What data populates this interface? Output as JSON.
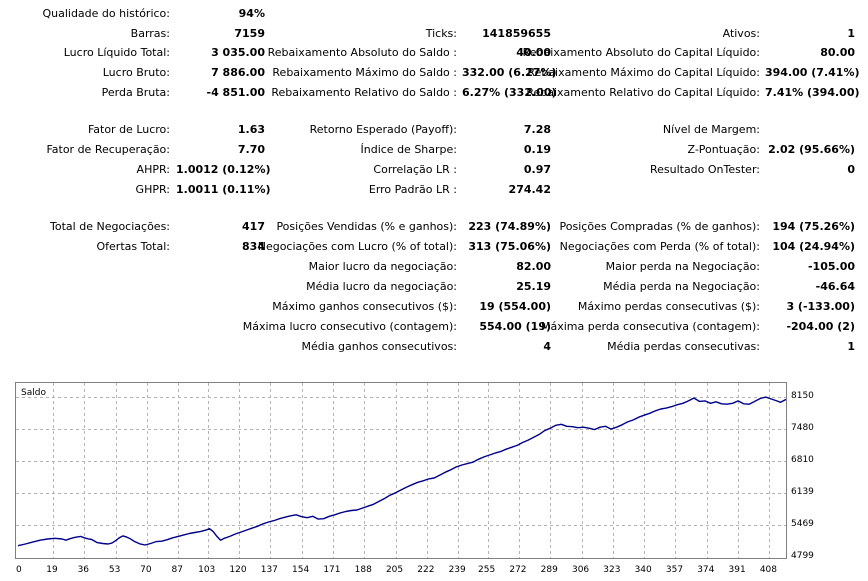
{
  "report": {
    "rows": [
      {
        "y": 7,
        "cells": [
          [
            "Qualidade do histórico:",
            "94%"
          ],
          null,
          null
        ]
      },
      {
        "y": 27,
        "cells": [
          [
            "Barras:",
            "7159"
          ],
          [
            "Ticks:",
            "141859655"
          ],
          [
            "Ativos:",
            "1"
          ]
        ]
      },
      {
        "y": 46,
        "cells": [
          [
            "Lucro Líquido Total:",
            "3 035.00"
          ],
          [
            "Rebaixamento Absoluto do Saldo :",
            "40.00"
          ],
          [
            "Rebaixamento Absoluto do Capital Líquido:",
            "80.00"
          ]
        ]
      },
      {
        "y": 66,
        "cells": [
          [
            "Lucro Bruto:",
            "7 886.00"
          ],
          [
            "Rebaixamento Máximo do Saldo :",
            "332.00 (6.27%)"
          ],
          [
            "Rebaixamento Máximo do Capital Líquido:",
            "394.00 (7.41%)"
          ]
        ]
      },
      {
        "y": 86,
        "cells": [
          [
            "Perda Bruta:",
            "-4 851.00"
          ],
          [
            "Rebaixamento Relativo do Saldo :",
            "6.27% (332.00)"
          ],
          [
            "Rebaixamento Relativo do Capital Líquido:",
            "7.41% (394.00)"
          ]
        ]
      },
      {
        "y": 123,
        "cells": [
          [
            "Fator de Lucro:",
            "1.63"
          ],
          [
            "Retorno Esperado (Payoff):",
            "7.28"
          ],
          [
            "Nível de Margem:",
            ""
          ]
        ]
      },
      {
        "y": 143,
        "cells": [
          [
            "Fator de Recuperação:",
            "7.70"
          ],
          [
            "Índice de Sharpe:",
            "0.19"
          ],
          [
            "Z-Pontuação:",
            "2.02 (95.66%)"
          ]
        ]
      },
      {
        "y": 163,
        "cells": [
          [
            "AHPR:",
            "1.0012 (0.12%)"
          ],
          [
            "Correlação LR :",
            "0.97"
          ],
          [
            "Resultado OnTester:",
            "0"
          ]
        ]
      },
      {
        "y": 183,
        "cells": [
          [
            "GHPR:",
            "1.0011 (0.11%)"
          ],
          [
            "Erro Padrão LR :",
            "274.42"
          ],
          null
        ]
      },
      {
        "y": 220,
        "cells": [
          [
            "Total de Negociações:",
            "417"
          ],
          [
            "Posições Vendidas (% e ganhos):",
            "223 (74.89%)"
          ],
          [
            "Posições Compradas (% de ganhos):",
            "194 (75.26%)"
          ]
        ]
      },
      {
        "y": 240,
        "cells": [
          [
            "Ofertas Total:",
            "834"
          ],
          [
            "Negociações com Lucro (% of total):",
            "313 (75.06%)"
          ],
          [
            "Negociações com Perda (% of total):",
            "104 (24.94%)"
          ]
        ]
      },
      {
        "y": 260,
        "cells": [
          null,
          [
            "Maior lucro da negociação:",
            "82.00"
          ],
          [
            "Maior perda na Negociação:",
            "-105.00"
          ]
        ]
      },
      {
        "y": 280,
        "cells": [
          null,
          [
            "Média lucro da negociação:",
            "25.19"
          ],
          [
            "Média perda na Negociação:",
            "-46.64"
          ]
        ]
      },
      {
        "y": 300,
        "cells": [
          null,
          [
            "Máximo ganhos consecutivos ($):",
            "19 (554.00)"
          ],
          [
            "Máximo perdas consecutivas ($):",
            "3 (-133.00)"
          ]
        ]
      },
      {
        "y": 320,
        "cells": [
          null,
          [
            "Máxima lucro consecutivo (contagem):",
            "554.00 (19)"
          ],
          [
            "Máxima perda consecutiva (contagem):",
            "-204.00 (2)"
          ]
        ]
      },
      {
        "y": 340,
        "cells": [
          null,
          [
            "Média ganhos consecutivos:",
            "4"
          ],
          [
            "Média perdas consecutivas:",
            "1"
          ]
        ]
      }
    ]
  },
  "chart_data": {
    "type": "line",
    "title": "Saldo",
    "xlabel": "",
    "ylabel": "",
    "x_ticks": [
      0,
      19,
      36,
      53,
      70,
      87,
      103,
      120,
      137,
      154,
      171,
      188,
      205,
      222,
      239,
      255,
      272,
      289,
      306,
      323,
      340,
      357,
      374,
      391,
      408
    ],
    "y_ticks": [
      4799,
      5469,
      6139,
      6810,
      7480,
      8150
    ],
    "xlim": [
      0,
      417
    ],
    "ylim": [
      4799,
      8350
    ],
    "grid": true,
    "line_color": "#00008b",
    "series": [
      {
        "points": [
          [
            0,
            5035
          ],
          [
            4,
            5070
          ],
          [
            8,
            5110
          ],
          [
            12,
            5150
          ],
          [
            16,
            5175
          ],
          [
            20,
            5190
          ],
          [
            24,
            5175
          ],
          [
            26,
            5150
          ],
          [
            28,
            5180
          ],
          [
            31,
            5210
          ],
          [
            34,
            5230
          ],
          [
            36,
            5200
          ],
          [
            38,
            5180
          ],
          [
            40,
            5165
          ],
          [
            43,
            5100
          ],
          [
            46,
            5080
          ],
          [
            49,
            5070
          ],
          [
            51,
            5090
          ],
          [
            53,
            5140
          ],
          [
            55,
            5200
          ],
          [
            57,
            5240
          ],
          [
            59,
            5215
          ],
          [
            61,
            5180
          ],
          [
            63,
            5130
          ],
          [
            66,
            5075
          ],
          [
            69,
            5050
          ],
          [
            72,
            5080
          ],
          [
            75,
            5120
          ],
          [
            78,
            5130
          ],
          [
            81,
            5160
          ],
          [
            84,
            5200
          ],
          [
            87,
            5230
          ],
          [
            90,
            5260
          ],
          [
            93,
            5290
          ],
          [
            96,
            5310
          ],
          [
            99,
            5330
          ],
          [
            102,
            5360
          ],
          [
            104,
            5390
          ],
          [
            106,
            5330
          ],
          [
            108,
            5230
          ],
          [
            110,
            5150
          ],
          [
            112,
            5190
          ],
          [
            115,
            5230
          ],
          [
            118,
            5280
          ],
          [
            121,
            5320
          ],
          [
            124,
            5360
          ],
          [
            127,
            5400
          ],
          [
            130,
            5440
          ],
          [
            133,
            5490
          ],
          [
            136,
            5530
          ],
          [
            139,
            5560
          ],
          [
            142,
            5600
          ],
          [
            145,
            5630
          ],
          [
            148,
            5660
          ],
          [
            151,
            5680
          ],
          [
            154,
            5640
          ],
          [
            157,
            5620
          ],
          [
            160,
            5650
          ],
          [
            163,
            5590
          ],
          [
            166,
            5600
          ],
          [
            169,
            5650
          ],
          [
            172,
            5680
          ],
          [
            175,
            5720
          ],
          [
            178,
            5750
          ],
          [
            181,
            5770
          ],
          [
            184,
            5780
          ],
          [
            187,
            5820
          ],
          [
            190,
            5860
          ],
          [
            193,
            5900
          ],
          [
            196,
            5960
          ],
          [
            199,
            6020
          ],
          [
            202,
            6090
          ],
          [
            205,
            6140
          ],
          [
            208,
            6200
          ],
          [
            211,
            6260
          ],
          [
            214,
            6310
          ],
          [
            217,
            6360
          ],
          [
            220,
            6390
          ],
          [
            223,
            6430
          ],
          [
            226,
            6450
          ],
          [
            229,
            6510
          ],
          [
            232,
            6570
          ],
          [
            235,
            6620
          ],
          [
            238,
            6680
          ],
          [
            241,
            6720
          ],
          [
            244,
            6750
          ],
          [
            247,
            6780
          ],
          [
            250,
            6840
          ],
          [
            253,
            6890
          ],
          [
            256,
            6930
          ],
          [
            259,
            6970
          ],
          [
            262,
            7000
          ],
          [
            265,
            7050
          ],
          [
            268,
            7090
          ],
          [
            271,
            7130
          ],
          [
            274,
            7190
          ],
          [
            277,
            7240
          ],
          [
            280,
            7300
          ],
          [
            283,
            7360
          ],
          [
            286,
            7440
          ],
          [
            289,
            7490
          ],
          [
            292,
            7550
          ],
          [
            295,
            7570
          ],
          [
            298,
            7530
          ],
          [
            301,
            7520
          ],
          [
            304,
            7500
          ],
          [
            307,
            7510
          ],
          [
            310,
            7490
          ],
          [
            313,
            7460
          ],
          [
            316,
            7510
          ],
          [
            319,
            7530
          ],
          [
            322,
            7470
          ],
          [
            325,
            7510
          ],
          [
            328,
            7560
          ],
          [
            331,
            7620
          ],
          [
            334,
            7660
          ],
          [
            337,
            7720
          ],
          [
            340,
            7760
          ],
          [
            343,
            7800
          ],
          [
            346,
            7850
          ],
          [
            349,
            7890
          ],
          [
            352,
            7910
          ],
          [
            355,
            7940
          ],
          [
            358,
            7980
          ],
          [
            361,
            8010
          ],
          [
            364,
            8060
          ],
          [
            367,
            8120
          ],
          [
            370,
            8050
          ],
          [
            373,
            8060
          ],
          [
            376,
            8010
          ],
          [
            379,
            8040
          ],
          [
            382,
            8000
          ],
          [
            385,
            7990
          ],
          [
            388,
            8010
          ],
          [
            391,
            8060
          ],
          [
            394,
            8000
          ],
          [
            397,
            7990
          ],
          [
            400,
            8050
          ],
          [
            403,
            8110
          ],
          [
            406,
            8140
          ],
          [
            409,
            8100
          ],
          [
            412,
            8060
          ],
          [
            414,
            8030
          ],
          [
            417,
            8090
          ]
        ]
      }
    ]
  }
}
